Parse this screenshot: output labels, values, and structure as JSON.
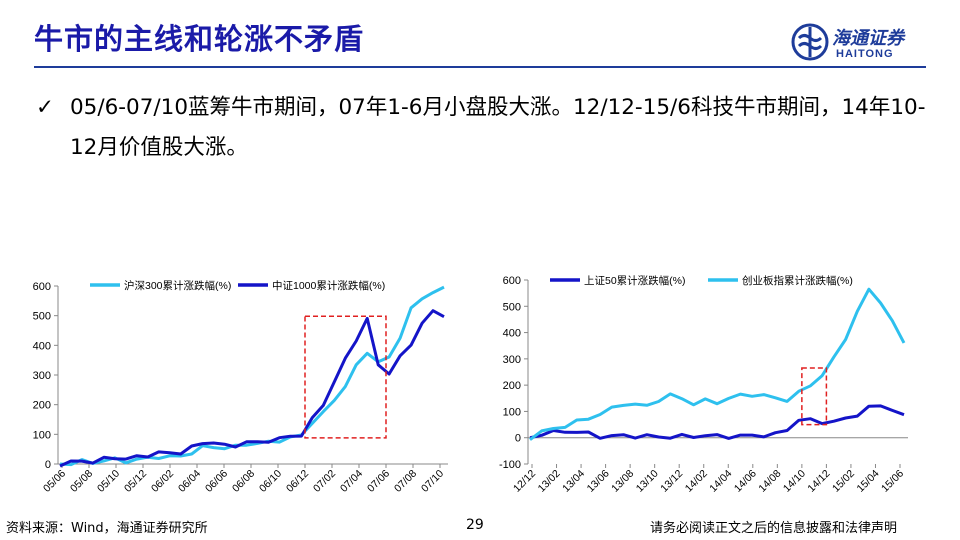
{
  "header": {
    "title": "牛市的主线和轮涨不矛盾",
    "logo_cn": "海通证券",
    "logo_en": "HAITONG"
  },
  "bullet": {
    "check": "✓",
    "text": "05/6-07/10蓝筹牛市期间，07年1-6月小盘股大涨。12/12-15/6科技牛市期间，14年10-12月价值股大涨。"
  },
  "colors": {
    "title": "#1a1aa8",
    "light_series": "#2ec0ee",
    "dark_series": "#1414c8",
    "highlight_box": "#e02020"
  },
  "chart_data": [
    {
      "type": "line",
      "ylim": [
        0,
        600
      ],
      "yticks": [
        "0",
        "100",
        "200",
        "300",
        "400",
        "500",
        "600"
      ],
      "xticks": [
        "05/06",
        "05/08",
        "05/10",
        "05/12",
        "06/02",
        "06/04",
        "06/06",
        "06/08",
        "06/10",
        "06/12",
        "07/02",
        "07/04",
        "07/06",
        "07/08",
        "07/10"
      ],
      "highlight": {
        "x_from": "06/12",
        "x_to": "07/06",
        "y_from": 88,
        "y_to": 498
      },
      "series": [
        {
          "name": "沪深300累计涨跌幅(%)",
          "color": "light",
          "values": [
            0,
            3,
            8,
            6,
            12,
            15,
            10,
            14,
            20,
            25,
            22,
            28,
            38,
            55,
            60,
            52,
            58,
            70,
            66,
            75,
            80,
            85,
            100,
            140,
            170,
            220,
            260,
            330,
            380,
            340,
            360,
            430,
            520,
            560,
            580,
            590
          ]
        },
        {
          "name": "中证1000累计涨跌幅(%)",
          "color": "dark",
          "values": [
            0,
            5,
            10,
            8,
            16,
            22,
            18,
            22,
            30,
            38,
            35,
            40,
            55,
            70,
            75,
            60,
            62,
            75,
            70,
            80,
            85,
            92,
            100,
            150,
            200,
            280,
            350,
            420,
            490,
            330,
            310,
            360,
            400,
            480,
            510,
            500
          ]
        }
      ]
    },
    {
      "type": "line",
      "ylim": [
        -100,
        600
      ],
      "yticks": [
        "-100",
        "0",
        "100",
        "200",
        "300",
        "400",
        "500",
        "600"
      ],
      "xticks": [
        "12/12",
        "13/02",
        "13/04",
        "13/06",
        "13/08",
        "13/10",
        "13/12",
        "14/02",
        "14/04",
        "14/06",
        "14/08",
        "14/10",
        "14/12",
        "15/02",
        "15/04",
        "15/06"
      ],
      "highlight": {
        "x_from": "14/10",
        "x_to": "14/12",
        "y_from": 50,
        "y_to": 265
      },
      "series": [
        {
          "name": "上证50累计涨跌幅(%)",
          "color": "dark",
          "values": [
            0,
            15,
            20,
            25,
            22,
            15,
            5,
            5,
            8,
            6,
            5,
            4,
            3,
            5,
            6,
            8,
            6,
            5,
            6,
            8,
            10,
            12,
            30,
            70,
            65,
            60,
            62,
            70,
            90,
            115,
            120,
            110,
            80
          ]
        },
        {
          "name": "创业板指累计涨跌幅(%)",
          "color": "light",
          "values": [
            0,
            20,
            35,
            45,
            60,
            75,
            90,
            110,
            130,
            125,
            120,
            145,
            160,
            150,
            130,
            140,
            135,
            150,
            160,
            165,
            160,
            150,
            145,
            170,
            200,
            240,
            300,
            380,
            480,
            560,
            520,
            440,
            360
          ]
        }
      ]
    }
  ],
  "footer": {
    "source": "资料来源：Wind，海通证券研究所",
    "page": "29",
    "disclaimer": "请务必阅读正文之后的信息披露和法律声明"
  }
}
